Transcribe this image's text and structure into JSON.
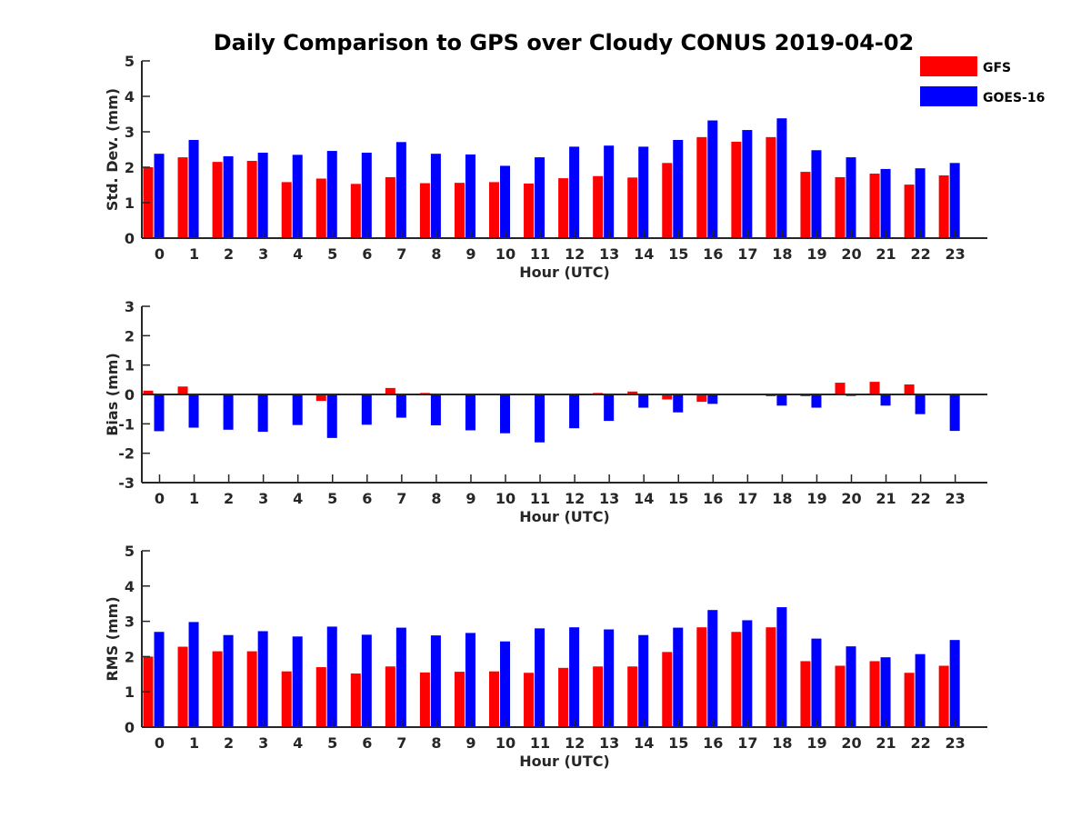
{
  "title": "Daily Comparison to GPS over Cloudy CONUS 2019-04-02",
  "legend": [
    {
      "name": "GFS",
      "color": "#ff0000"
    },
    {
      "name": "GOES-16",
      "color": "#0000ff"
    }
  ],
  "colors": {
    "gfs": "#ff0000",
    "goes16": "#0000ff",
    "axis": "#262626"
  },
  "chart_data": [
    {
      "type": "bar",
      "xlabel": "Hour (UTC)",
      "ylabel": "Std. Dev. (mm)",
      "ylim": [
        0,
        5
      ],
      "yticks": [
        0,
        1,
        2,
        3,
        4,
        5
      ],
      "categories": [
        "0",
        "1",
        "2",
        "3",
        "4",
        "5",
        "6",
        "7",
        "8",
        "9",
        "10",
        "11",
        "12",
        "13",
        "14",
        "15",
        "16",
        "17",
        "18",
        "19",
        "20",
        "21",
        "22",
        "23"
      ],
      "series": [
        {
          "name": "GFS",
          "values": [
            2.0,
            2.28,
            2.15,
            2.18,
            1.58,
            1.68,
            1.53,
            1.72,
            1.55,
            1.56,
            1.58,
            1.54,
            1.69,
            1.75,
            1.71,
            2.12,
            2.85,
            2.72,
            2.85,
            1.87,
            1.72,
            1.82,
            1.51,
            1.77
          ]
        },
        {
          "name": "GOES-16",
          "values": [
            2.38,
            2.77,
            2.31,
            2.41,
            2.35,
            2.46,
            2.41,
            2.71,
            2.38,
            2.36,
            2.04,
            2.28,
            2.58,
            2.61,
            2.58,
            2.77,
            3.32,
            3.05,
            3.38,
            2.48,
            2.28,
            1.95,
            1.97,
            2.12
          ]
        }
      ]
    },
    {
      "type": "bar",
      "xlabel": "Hour (UTC)",
      "ylabel": "Bias (mm)",
      "ylim": [
        -3,
        3
      ],
      "yticks": [
        -3,
        -2,
        -1,
        0,
        1,
        2,
        3
      ],
      "categories": [
        "0",
        "1",
        "2",
        "3",
        "4",
        "5",
        "6",
        "7",
        "8",
        "9",
        "10",
        "11",
        "12",
        "13",
        "14",
        "15",
        "16",
        "17",
        "18",
        "19",
        "20",
        "21",
        "22",
        "23"
      ],
      "series": [
        {
          "name": "GFS",
          "values": [
            0.13,
            0.27,
            0.02,
            0.02,
            0.0,
            -0.22,
            0.02,
            0.22,
            0.05,
            0.0,
            0.0,
            -0.02,
            -0.02,
            0.05,
            0.1,
            -0.17,
            -0.25,
            -0.02,
            -0.06,
            -0.06,
            0.4,
            0.43,
            0.34,
            0.0
          ]
        },
        {
          "name": "GOES-16",
          "values": [
            -1.25,
            -1.13,
            -1.2,
            -1.27,
            -1.04,
            -1.48,
            -1.03,
            -0.79,
            -1.05,
            -1.22,
            -1.32,
            -1.63,
            -1.15,
            -0.9,
            -0.45,
            -0.61,
            -0.32,
            -0.02,
            -0.38,
            -0.45,
            -0.05,
            -0.38,
            -0.67,
            -1.24
          ]
        }
      ]
    },
    {
      "type": "bar",
      "xlabel": "Hour (UTC)",
      "ylabel": "RMS (mm)",
      "ylim": [
        0,
        5
      ],
      "yticks": [
        0,
        1,
        2,
        3,
        4,
        5
      ],
      "categories": [
        "0",
        "1",
        "2",
        "3",
        "4",
        "5",
        "6",
        "7",
        "8",
        "9",
        "10",
        "11",
        "12",
        "13",
        "14",
        "15",
        "16",
        "17",
        "18",
        "19",
        "20",
        "21",
        "22",
        "23"
      ],
      "series": [
        {
          "name": "GFS",
          "values": [
            2.0,
            2.28,
            2.15,
            2.15,
            1.58,
            1.7,
            1.52,
            1.72,
            1.55,
            1.57,
            1.58,
            1.54,
            1.68,
            1.72,
            1.72,
            2.13,
            2.83,
            2.7,
            2.83,
            1.87,
            1.74,
            1.87,
            1.54,
            1.74
          ]
        },
        {
          "name": "GOES-16",
          "values": [
            2.7,
            2.98,
            2.61,
            2.72,
            2.57,
            2.85,
            2.62,
            2.82,
            2.6,
            2.67,
            2.43,
            2.8,
            2.83,
            2.77,
            2.61,
            2.82,
            3.32,
            3.03,
            3.4,
            2.51,
            2.29,
            1.98,
            2.07,
            2.47
          ]
        }
      ]
    }
  ]
}
